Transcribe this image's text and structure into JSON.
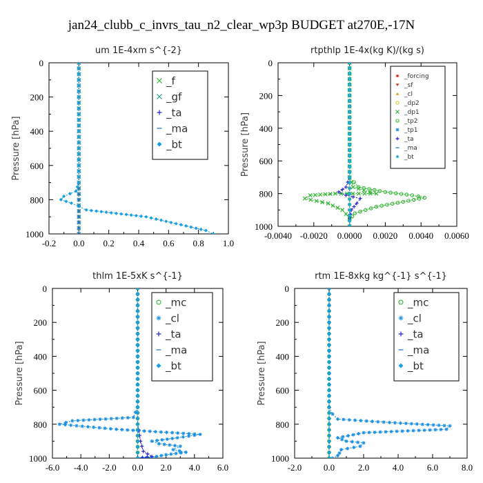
{
  "figure_title": "jan24_clubb_c_invrs_tau_n2_clear_wp3p  BUDGET at270E,-17N",
  "chart_data": [
    {
      "type": "line",
      "title": "um   1E-4xm s^{-2}",
      "ylabel": "Pressure [hPa]",
      "xlim": [
        -0.2,
        1.0
      ],
      "ylim": [
        1000,
        0
      ],
      "xticks": [
        "-0.2",
        "0.0",
        "0.2",
        "0.4",
        "0.6",
        "0.8",
        "1.0"
      ],
      "yticks": [
        "0",
        "200",
        "400",
        "600",
        "800",
        "1000"
      ],
      "legend": {
        "position": "top-right",
        "font_size": 15
      },
      "series": [
        {
          "name": "_f",
          "color": "#2fb52f",
          "marker": "x",
          "x": [
            0,
            0,
            0,
            0,
            0,
            0,
            0,
            0,
            0,
            0,
            0
          ],
          "y": [
            0,
            100,
            200,
            300,
            400,
            500,
            600,
            700,
            800,
            900,
            1000
          ]
        },
        {
          "name": "_gf",
          "color": "#1f9a8a",
          "marker": "x",
          "x": [
            0,
            0,
            0,
            0,
            0,
            0,
            0,
            0,
            0,
            0,
            0
          ],
          "y": [
            0,
            100,
            200,
            300,
            400,
            500,
            600,
            700,
            800,
            900,
            1000
          ]
        },
        {
          "name": "_ta",
          "color": "#2222cc",
          "marker": "+",
          "x": [
            0,
            0,
            0,
            0,
            0,
            0,
            0,
            0,
            0,
            0,
            0
          ],
          "y": [
            0,
            100,
            200,
            300,
            400,
            500,
            600,
            700,
            800,
            900,
            1000
          ]
        },
        {
          "name": "_ma",
          "color": "#3a7fd0",
          "marker": "-",
          "x": [
            0,
            0,
            0,
            0,
            0,
            0,
            0,
            0,
            0,
            0,
            0
          ],
          "y": [
            0,
            100,
            200,
            300,
            400,
            500,
            600,
            700,
            800,
            900,
            1000
          ]
        },
        {
          "name": "_bt",
          "color": "#1aa0e0",
          "marker": "diamond",
          "x": [
            0,
            0,
            0,
            0,
            0,
            0,
            0,
            0,
            -0.02,
            -0.1,
            -0.12,
            -0.05,
            0.0,
            0.05,
            0.15,
            0.25,
            0.35,
            0.45,
            0.55,
            0.65,
            0.75,
            0.85,
            0.9
          ],
          "y": [
            0,
            100,
            200,
            300,
            400,
            500,
            600,
            700,
            750,
            780,
            800,
            820,
            840,
            860,
            870,
            880,
            890,
            900,
            920,
            940,
            960,
            980,
            1000
          ]
        }
      ]
    },
    {
      "type": "line",
      "title": "rtpthlp   1E-4x(kg K)/(kg s)",
      "ylabel": "Pressure [hPa]",
      "xlim": [
        -0.004,
        0.006
      ],
      "ylim": [
        1000,
        0
      ],
      "xticks": [
        "-0.0040",
        "-0.0020",
        "0.0000",
        "0.0020",
        "0.0040",
        "0.0060"
      ],
      "yticks": [
        "0",
        "200",
        "400",
        "600",
        "800",
        "1000"
      ],
      "legend": {
        "position": "top-right",
        "font_size": 9
      },
      "series": [
        {
          "name": "_forcing",
          "color": "#e03020",
          "marker": "diamond",
          "x": [
            0,
            0,
            0,
            0,
            0,
            0,
            0,
            0,
            0,
            0,
            0
          ],
          "y": [
            0,
            100,
            200,
            300,
            400,
            500,
            600,
            700,
            800,
            900,
            1000
          ]
        },
        {
          "name": "_sf",
          "color": "#e03020",
          "marker": "tri-down",
          "x": [
            0,
            0,
            0,
            0,
            0,
            0,
            0,
            0,
            0,
            0,
            0
          ],
          "y": [
            0,
            100,
            200,
            300,
            400,
            500,
            600,
            700,
            800,
            900,
            1000
          ]
        },
        {
          "name": "_cl",
          "color": "#e0a020",
          "marker": "tri-up",
          "x": [
            0,
            0,
            0,
            0,
            0,
            0,
            0,
            0,
            0,
            0,
            0
          ],
          "y": [
            0,
            100,
            200,
            300,
            400,
            500,
            600,
            700,
            800,
            900,
            1000
          ]
        },
        {
          "name": "_dp2",
          "color": "#e0d020",
          "marker": "o",
          "x": [
            0,
            0,
            0,
            0,
            0,
            0,
            0,
            0,
            0,
            0,
            0
          ],
          "y": [
            0,
            100,
            200,
            300,
            400,
            500,
            600,
            700,
            800,
            900,
            1000
          ]
        },
        {
          "name": "_dp1",
          "color": "#2fb52f",
          "marker": "x",
          "x": [
            0,
            0,
            0,
            0,
            0.0002,
            0.0008,
            0.0015,
            -0.0008,
            -0.0022,
            -0.0025,
            -0.0012,
            -0.0004,
            0,
            0
          ],
          "y": [
            0,
            200,
            400,
            700,
            760,
            780,
            800,
            800,
            810,
            830,
            860,
            900,
            950,
            1000
          ]
        },
        {
          "name": "_tp2",
          "color": "#2fb52f",
          "marker": "o",
          "x": [
            0,
            0,
            0,
            0,
            0.0005,
            0.002,
            0.0035,
            0.0042,
            0.003,
            0.0015,
            0.0003,
            0,
            0
          ],
          "y": [
            0,
            200,
            400,
            700,
            760,
            790,
            810,
            825,
            850,
            880,
            920,
            960,
            1000
          ]
        },
        {
          "name": "_tp1",
          "color": "#1a90e0",
          "marker": "star",
          "x": [
            0,
            0,
            0,
            0,
            0,
            0,
            0,
            0,
            0,
            0,
            0
          ],
          "y": [
            0,
            100,
            200,
            300,
            400,
            500,
            600,
            700,
            800,
            900,
            1000
          ]
        },
        {
          "name": "_ta",
          "color": "#2222cc",
          "marker": "+",
          "x": [
            0,
            0,
            0,
            -0.0002,
            -0.0006,
            -0.0002,
            0.0002,
            0.0006,
            0.0004,
            0.0001,
            0,
            0
          ],
          "y": [
            0,
            200,
            700,
            760,
            790,
            810,
            820,
            830,
            860,
            900,
            950,
            1000
          ]
        },
        {
          "name": "_ma",
          "color": "#3a7fd0",
          "marker": "-",
          "x": [
            0,
            0,
            0,
            0,
            0,
            0,
            0,
            0,
            0,
            0,
            0
          ],
          "y": [
            0,
            100,
            200,
            300,
            400,
            500,
            600,
            700,
            800,
            900,
            1000
          ]
        },
        {
          "name": "_bt",
          "color": "#1ab0e0",
          "marker": "diamond",
          "x": [
            0,
            0,
            0,
            0,
            0,
            0,
            0,
            0,
            0,
            0,
            0
          ],
          "y": [
            0,
            100,
            200,
            300,
            400,
            500,
            600,
            700,
            800,
            900,
            1000
          ]
        }
      ]
    },
    {
      "type": "line",
      "title": "thlm   1E-5xK s^{-1}",
      "ylabel": "Pressure [hPa]",
      "xlim": [
        -6.0,
        6.0
      ],
      "ylim": [
        1000,
        0
      ],
      "xticks": [
        "-6.0",
        "-4.0",
        "-2.0",
        "0.0",
        "2.0",
        "4.0",
        "6.0"
      ],
      "yticks": [
        "0",
        "200",
        "400",
        "600",
        "800",
        "1000"
      ],
      "legend": {
        "position": "top-right",
        "font_size": 15
      },
      "series": [
        {
          "name": "_mc",
          "color": "#2fb52f",
          "marker": "o",
          "x": [
            0,
            0,
            0,
            0,
            0,
            0,
            0,
            0,
            0,
            0,
            0
          ],
          "y": [
            0,
            100,
            200,
            300,
            400,
            500,
            600,
            700,
            800,
            900,
            1000
          ]
        },
        {
          "name": "_cl",
          "color": "#1a90e0",
          "marker": "star",
          "x": [
            0,
            0,
            0,
            0,
            0,
            -0.3,
            -4.6,
            -5.5,
            -1.5,
            4.4,
            2.8,
            1.0,
            1.5,
            3.0,
            2.5,
            3.4,
            2.0,
            1.0,
            0
          ],
          "y": [
            0,
            200,
            400,
            600,
            700,
            760,
            780,
            800,
            830,
            860,
            880,
            900,
            915,
            930,
            950,
            965,
            980,
            995,
            1000
          ]
        },
        {
          "name": "_ta",
          "color": "#2222cc",
          "marker": "+",
          "x": [
            0,
            0,
            0,
            0,
            0,
            0.2,
            0.4,
            1.0,
            0
          ],
          "y": [
            0,
            200,
            400,
            600,
            800,
            900,
            960,
            990,
            1000
          ]
        },
        {
          "name": "_ma",
          "color": "#3a7fd0",
          "marker": "-",
          "x": [
            0,
            0,
            0,
            0,
            0,
            0,
            0,
            0,
            0,
            0,
            0
          ],
          "y": [
            0,
            100,
            200,
            300,
            400,
            500,
            600,
            700,
            800,
            900,
            1000
          ]
        },
        {
          "name": "_bt",
          "color": "#1aa0e0",
          "marker": "diamond",
          "x": [
            0,
            0,
            0,
            0,
            0,
            0,
            0,
            0,
            0,
            0,
            0
          ],
          "y": [
            0,
            100,
            200,
            300,
            400,
            500,
            600,
            700,
            800,
            900,
            1000
          ]
        }
      ]
    },
    {
      "type": "line",
      "title": "rtm   1E-8xkg kg^{-1} s^{-1}",
      "ylabel": "Pressure [hPa]",
      "xlim": [
        -2.0,
        8.0
      ],
      "ylim": [
        1000,
        0
      ],
      "xticks": [
        "-2.0",
        "0.0",
        "2.0",
        "4.0",
        "6.0",
        "8.0"
      ],
      "yticks": [
        "0",
        "200",
        "400",
        "600",
        "800",
        "1000"
      ],
      "legend": {
        "position": "top-right",
        "font_size": 15
      },
      "series": [
        {
          "name": "_mc",
          "color": "#2fb52f",
          "marker": "o",
          "x": [
            0,
            0,
            0,
            0,
            0,
            0,
            0,
            0,
            0,
            0,
            0
          ],
          "y": [
            0,
            100,
            200,
            300,
            400,
            500,
            600,
            700,
            800,
            900,
            1000
          ]
        },
        {
          "name": "_cl",
          "color": "#1a90e0",
          "marker": "star",
          "x": [
            0,
            0,
            0,
            0,
            0,
            0.2,
            0.5,
            3.5,
            7.0,
            6.8,
            2.0,
            0.5,
            1.0,
            2.0,
            1.8,
            0.7,
            0.6,
            0.5,
            0.2
          ],
          "y": [
            0,
            200,
            400,
            600,
            700,
            740,
            770,
            790,
            810,
            830,
            850,
            880,
            900,
            910,
            930,
            950,
            970,
            985,
            1000
          ]
        },
        {
          "name": "_ta",
          "color": "#2222cc",
          "marker": "+",
          "x": [
            0,
            0,
            0,
            0,
            0,
            0,
            0,
            0,
            0,
            0,
            0
          ],
          "y": [
            0,
            100,
            200,
            300,
            400,
            500,
            600,
            700,
            800,
            900,
            1000
          ]
        },
        {
          "name": "_ma",
          "color": "#3a7fd0",
          "marker": "-",
          "x": [
            0,
            0,
            0,
            0,
            0,
            0,
            0,
            0,
            0,
            0,
            0
          ],
          "y": [
            0,
            100,
            200,
            300,
            400,
            500,
            600,
            700,
            800,
            900,
            1000
          ]
        },
        {
          "name": "_bt",
          "color": "#1aa0e0",
          "marker": "diamond",
          "x": [
            0,
            0,
            0,
            0,
            0,
            0,
            0,
            0,
            0,
            0,
            0
          ],
          "y": [
            0,
            100,
            200,
            300,
            400,
            500,
            600,
            700,
            800,
            900,
            1000
          ]
        }
      ]
    }
  ]
}
